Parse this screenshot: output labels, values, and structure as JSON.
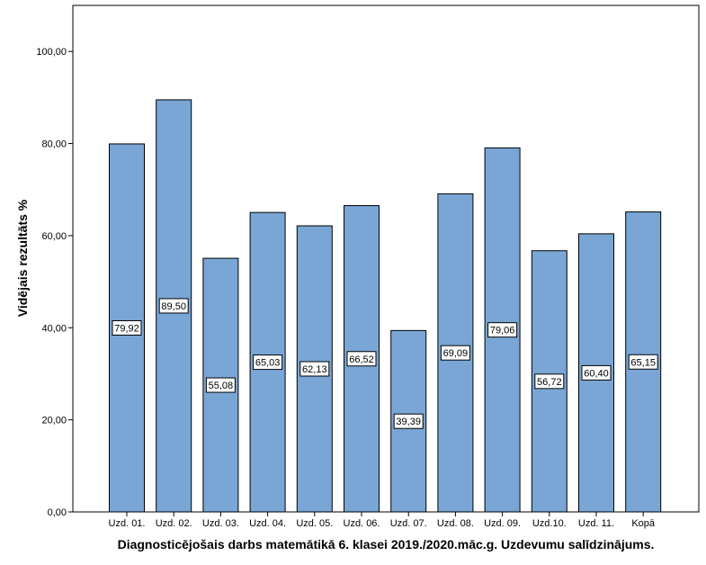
{
  "chart_data": {
    "type": "bar",
    "title": "",
    "xlabel": "Diagnosticējošais darbs matemātikā 6. klasei 2019./2020.māc.g. Uzdevumu salīdzinājums.",
    "ylabel": "Vidējais rezultāts %",
    "ylim": [
      0,
      110
    ],
    "yticks": [
      0,
      20,
      40,
      60,
      80,
      100
    ],
    "ytick_labels": [
      "0,00",
      "20,00",
      "40,00",
      "60,00",
      "80,00",
      "100,00"
    ],
    "categories": [
      "Uzd. 01.",
      "Uzd. 02.",
      "Uzd. 03.",
      "Uzd. 04.",
      "Uzd. 05.",
      "Uzd. 06.",
      "Uzd. 07.",
      "Uzd. 08.",
      "Uzd. 09.",
      "Uzd.10.",
      "Uzd. 11.",
      "Kopā"
    ],
    "values": [
      79.92,
      89.5,
      55.08,
      65.03,
      62.13,
      66.52,
      39.39,
      69.09,
      79.06,
      56.72,
      60.4,
      65.15
    ],
    "value_labels": [
      "79,92",
      "89,50",
      "55,08",
      "65,03",
      "62,13",
      "66,52",
      "39,39",
      "69,09",
      "79,06",
      "56,72",
      "60,40",
      "65,15"
    ],
    "grid": false,
    "legend": "none",
    "colors": {
      "bar_fill": "#7aa6d6",
      "bar_stroke": "#000000",
      "background": "#ffffff",
      "axis": "#000000"
    }
  }
}
